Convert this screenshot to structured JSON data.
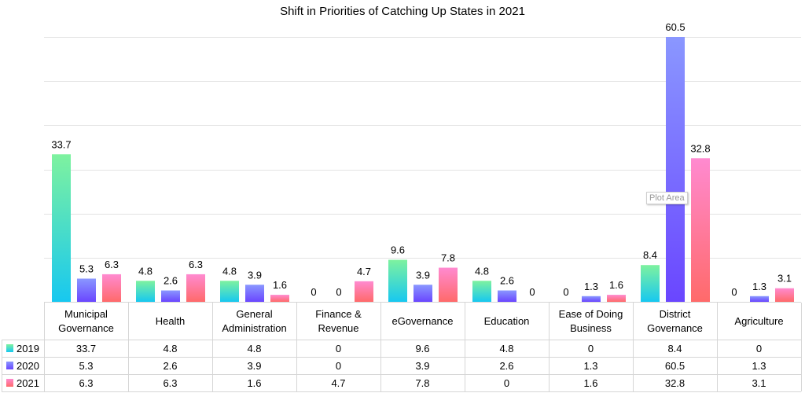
{
  "tooltip": "Plot Area",
  "chart_data": {
    "type": "bar",
    "title": "Shift in Priorities of Catching Up States in 2021",
    "categories": [
      [
        "Municipal",
        "Governance"
      ],
      [
        "Health"
      ],
      [
        "General",
        "Administration"
      ],
      [
        "Finance &",
        "Revenue"
      ],
      [
        "eGovernance"
      ],
      [
        "Education"
      ],
      [
        "Ease of Doing",
        "Business"
      ],
      [
        "District",
        "Governance"
      ],
      [
        "Agriculture"
      ]
    ],
    "series": [
      {
        "name": "2019",
        "values": [
          33.7,
          4.8,
          4.8,
          0,
          9.6,
          4.8,
          0,
          8.4,
          0
        ],
        "colors": [
          "#17c8f0",
          "#7ef29f"
        ]
      },
      {
        "name": "2020",
        "values": [
          5.3,
          2.6,
          3.9,
          0,
          3.9,
          2.6,
          1.3,
          60.5,
          1.3
        ],
        "colors": [
          "#6a46ff",
          "#8a97ff"
        ]
      },
      {
        "name": "2021",
        "values": [
          6.3,
          6.3,
          1.6,
          4.7,
          7.8,
          0,
          1.6,
          32.8,
          3.1
        ],
        "colors": [
          "#ff6a6a",
          "#ff8ad0"
        ]
      }
    ],
    "ylim": [
      0,
      60.5
    ],
    "gridlines": true,
    "legend": "data-table",
    "data_labels": true
  }
}
